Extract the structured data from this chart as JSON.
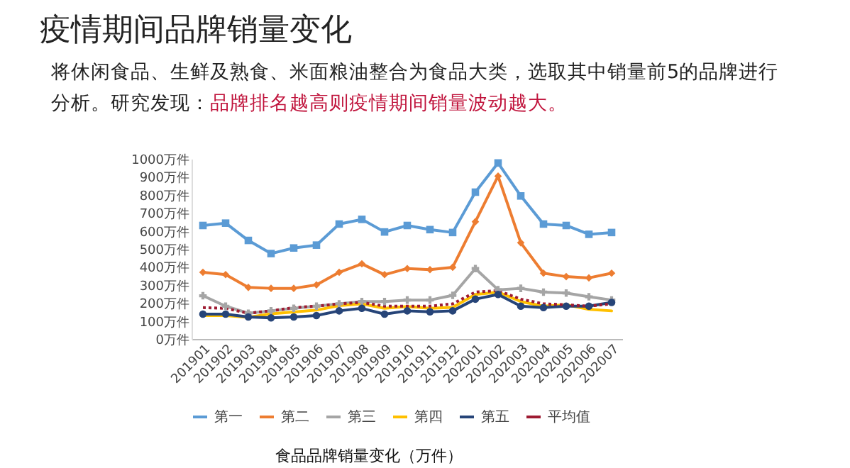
{
  "chart_data": {
    "type": "line",
    "title": "疫情期间品牌销量变化",
    "subtitle": "将休闲食品、生鲜及熟食、米面粮油整合为食品大类，选取其中销量前5的品牌进行分析。研究发现：",
    "annotations": [
      "品牌排名越高则疫情期间销量波动越大。"
    ],
    "xlabel": "食品品牌销量变化（万件）",
    "categories": [
      "201901",
      "201902",
      "201903",
      "201904",
      "201905",
      "201906",
      "201907",
      "201908",
      "201909",
      "201910",
      "201911",
      "201912",
      "202001",
      "202002",
      "202003",
      "202004",
      "202005",
      "202006",
      "202007"
    ],
    "series": [
      {
        "name": "第一",
        "color": "#5b9bd5",
        "marker": "square",
        "values": [
          630,
          643,
          547,
          474,
          505,
          521,
          638,
          664,
          594,
          630,
          607,
          591,
          815,
          977,
          794,
          638,
          630,
          581,
          591
        ]
      },
      {
        "name": "第二",
        "color": "#ed7d31",
        "marker": "diamond",
        "values": [
          370,
          357,
          286,
          281,
          281,
          300,
          370,
          417,
          357,
          391,
          385,
          398,
          651,
          904,
          534,
          365,
          346,
          339,
          365
        ]
      },
      {
        "name": "第三",
        "color": "#a5a5a5",
        "marker": "cross",
        "values": [
          240,
          182,
          143,
          156,
          170,
          182,
          195,
          208,
          208,
          216,
          216,
          242,
          391,
          273,
          281,
          260,
          255,
          234,
          216
        ]
      },
      {
        "name": "第四",
        "color": "#ffc000",
        "marker": "none",
        "values": [
          130,
          130,
          120,
          140,
          150,
          160,
          185,
          195,
          170,
          180,
          170,
          175,
          247,
          260,
          208,
          182,
          190,
          164,
          156
        ]
      },
      {
        "name": "第五",
        "color": "#264478",
        "marker": "circle",
        "values": [
          138,
          138,
          122,
          117,
          122,
          130,
          156,
          170,
          138,
          156,
          151,
          156,
          221,
          247,
          182,
          174,
          182,
          182,
          203
        ]
      },
      {
        "name": "平均值",
        "color": "#9e1b32",
        "marker": "none",
        "line_style": "dotted",
        "values": [
          174,
          170,
          143,
          156,
          174,
          182,
          195,
          203,
          182,
          182,
          182,
          195,
          260,
          268,
          221,
          195,
          190,
          182,
          195
        ]
      }
    ],
    "ylim": [
      0,
      1000
    ],
    "yticks": [
      {
        "value": 0,
        "label": "0万件"
      },
      {
        "value": 100,
        "label": "100万件"
      },
      {
        "value": 200,
        "label": "200万件"
      },
      {
        "value": 300,
        "label": "300万件"
      },
      {
        "value": 400,
        "label": "400万件"
      },
      {
        "value": 500,
        "label": "500万件"
      },
      {
        "value": 600,
        "label": "600万件"
      },
      {
        "value": 700,
        "label": "700万件"
      },
      {
        "value": 800,
        "label": "800万件"
      },
      {
        "value": 900,
        "label": "900万件"
      },
      {
        "value": 1000,
        "label": "1000万件"
      }
    ],
    "grid": false,
    "legend": "bottom"
  }
}
